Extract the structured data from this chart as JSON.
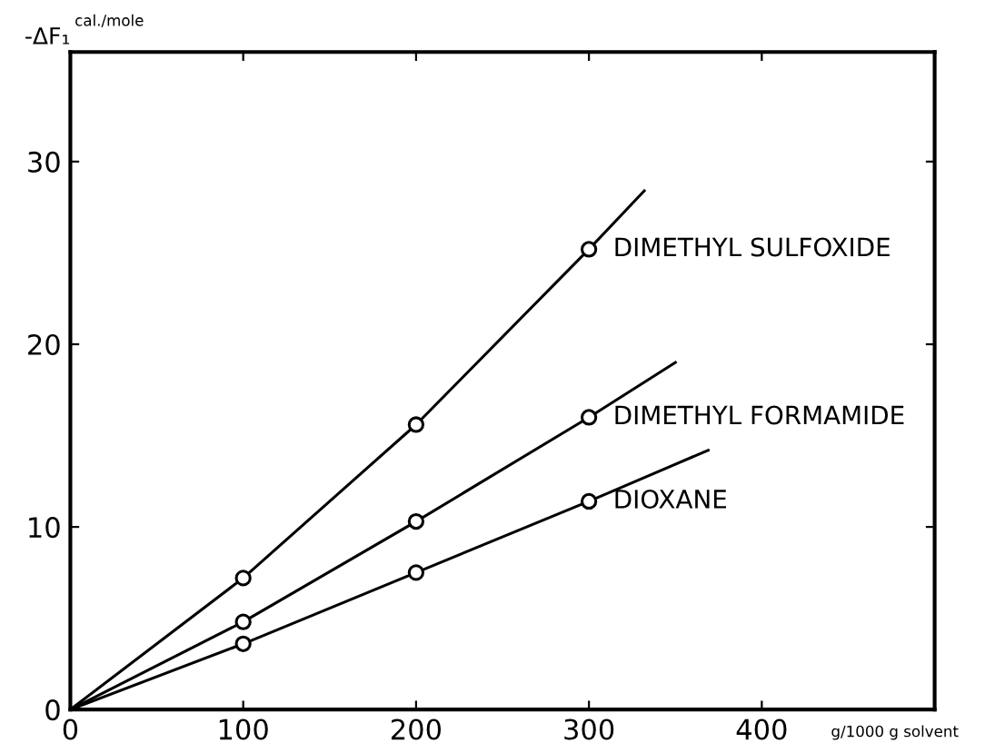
{
  "chart_data": {
    "type": "line",
    "ylabel": "-ΔF₁",
    "xlabel": "g/1000 g solvent",
    "annotations": [
      "cal./mole"
    ],
    "xlim": [
      0,
      500
    ],
    "ylim": [
      0,
      36
    ],
    "xticks": [
      0,
      100,
      200,
      300,
      400
    ],
    "yticks": [
      0,
      10,
      20,
      30
    ],
    "grid": false,
    "legend": false,
    "series": [
      {
        "name": "DIMETHYL SULFOXIDE",
        "color": "#000000",
        "marker": "none",
        "x": [
          0,
          100,
          200,
          300,
          332
        ],
        "values": [
          0,
          7.2,
          15.6,
          25.2,
          28.4
        ]
      },
      {
        "name": "DIMETHYL FORMAMIDE",
        "color": "#000000",
        "marker": "none",
        "x": [
          0,
          100,
          200,
          300,
          350
        ],
        "values": [
          0,
          4.8,
          10.3,
          16.0,
          19.0
        ]
      },
      {
        "name": "DIOXANE",
        "color": "#000000",
        "marker": "none",
        "x": [
          0,
          100,
          200,
          300,
          369
        ],
        "values": [
          0,
          3.6,
          7.5,
          11.4,
          14.2
        ]
      },
      {
        "type": "scatter",
        "color": "#000000",
        "marker": "circle",
        "x": [
          100,
          200,
          300
        ],
        "values": [
          7.2,
          15.6,
          25.2
        ]
      },
      {
        "type": "scatter",
        "color": "#000000",
        "marker": "circle",
        "x": [
          100,
          200,
          300
        ],
        "values": [
          4.8,
          10.3,
          16.0
        ]
      },
      {
        "type": "scatter",
        "color": "#000000",
        "marker": "circle",
        "x": [
          100,
          200,
          300
        ],
        "values": [
          3.6,
          7.5,
          11.4
        ]
      }
    ]
  }
}
